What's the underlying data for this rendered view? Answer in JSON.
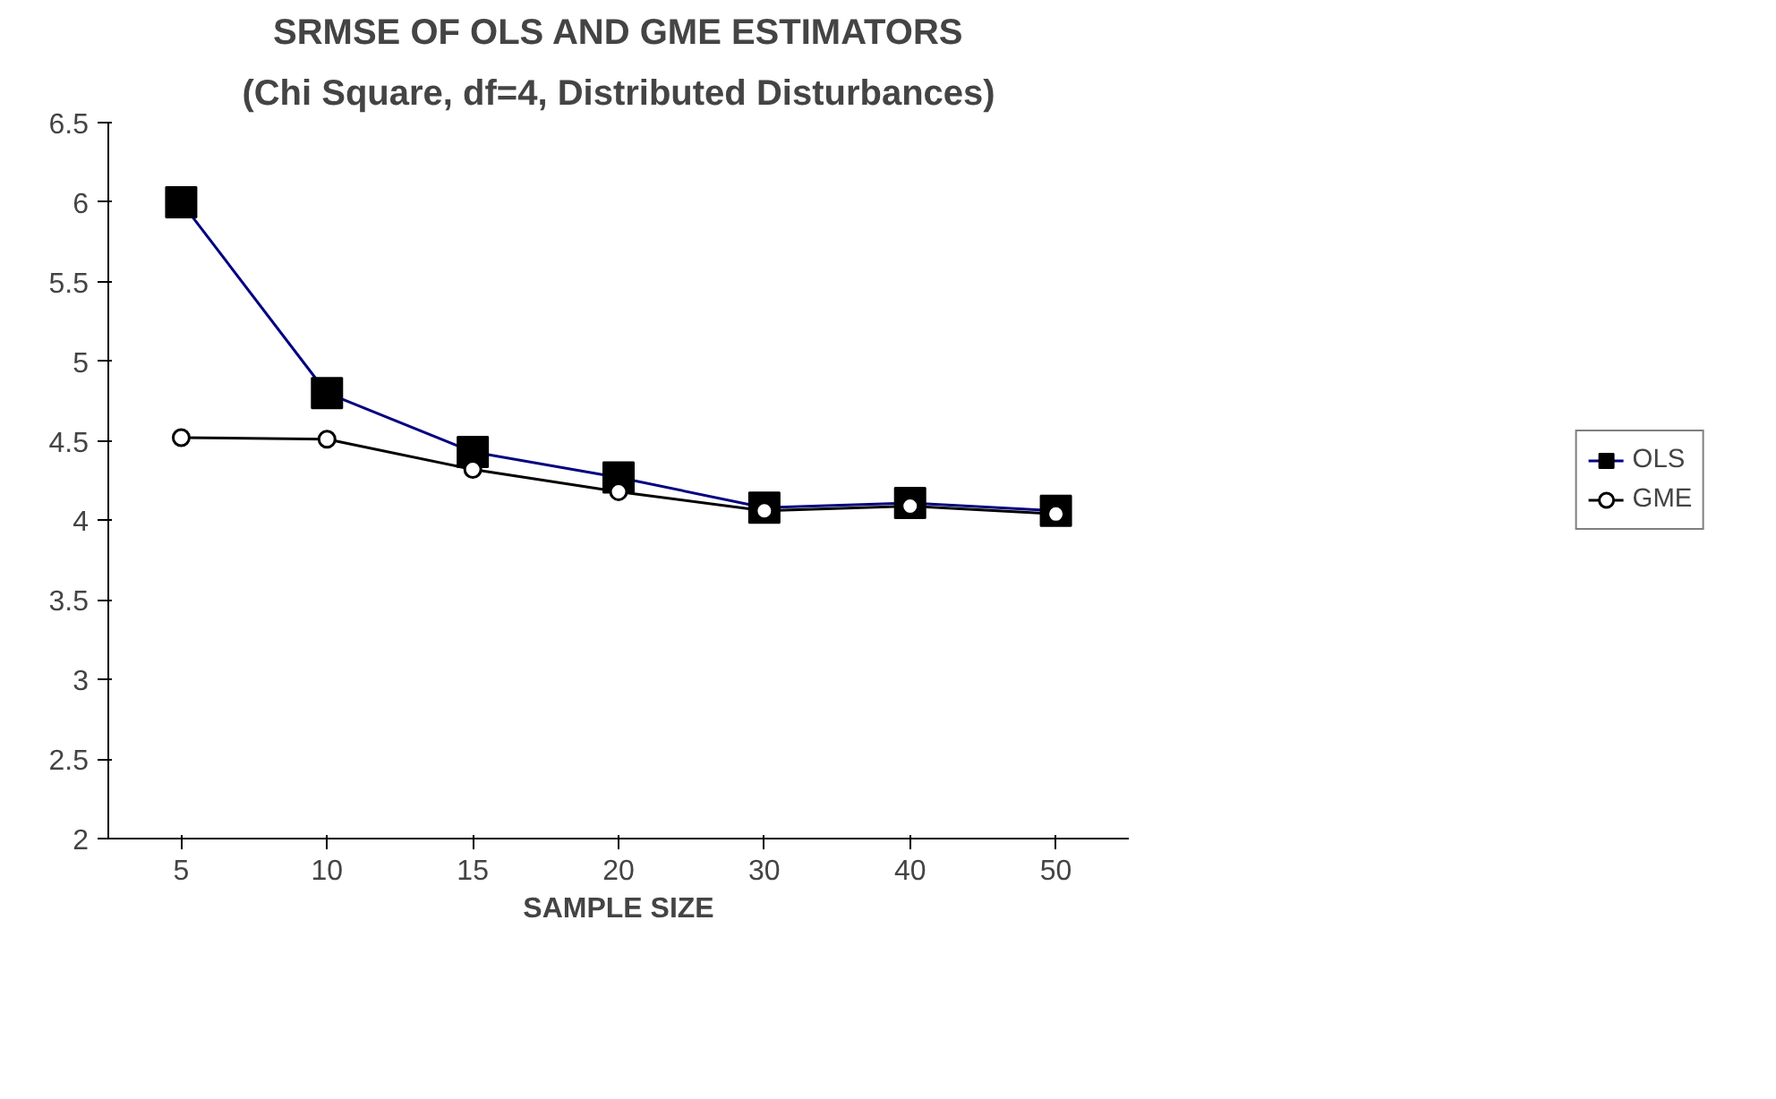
{
  "chart_data": {
    "type": "line",
    "title": "SRMSE OF OLS AND GME ESTIMATORS",
    "subtitle": "(Chi Square, df=4, Distributed Disturbances)",
    "xlabel": "SAMPLE SIZE",
    "categories": [
      "5",
      "10",
      "15",
      "20",
      "30",
      "40",
      "50"
    ],
    "series": [
      {
        "name": "OLS",
        "color": "#000080",
        "marker": "square",
        "values": [
          6.0,
          4.8,
          4.43,
          4.27,
          4.08,
          4.11,
          4.06
        ]
      },
      {
        "name": "GME",
        "color": "#000000",
        "marker": "circle",
        "values": [
          4.52,
          4.51,
          4.32,
          4.18,
          4.06,
          4.09,
          4.04
        ]
      }
    ],
    "ylim": [
      2,
      6.5
    ],
    "yticks": [
      2,
      2.5,
      3,
      3.5,
      4,
      4.5,
      5,
      5.5,
      6,
      6.5
    ],
    "grid": false,
    "legend": "right"
  }
}
